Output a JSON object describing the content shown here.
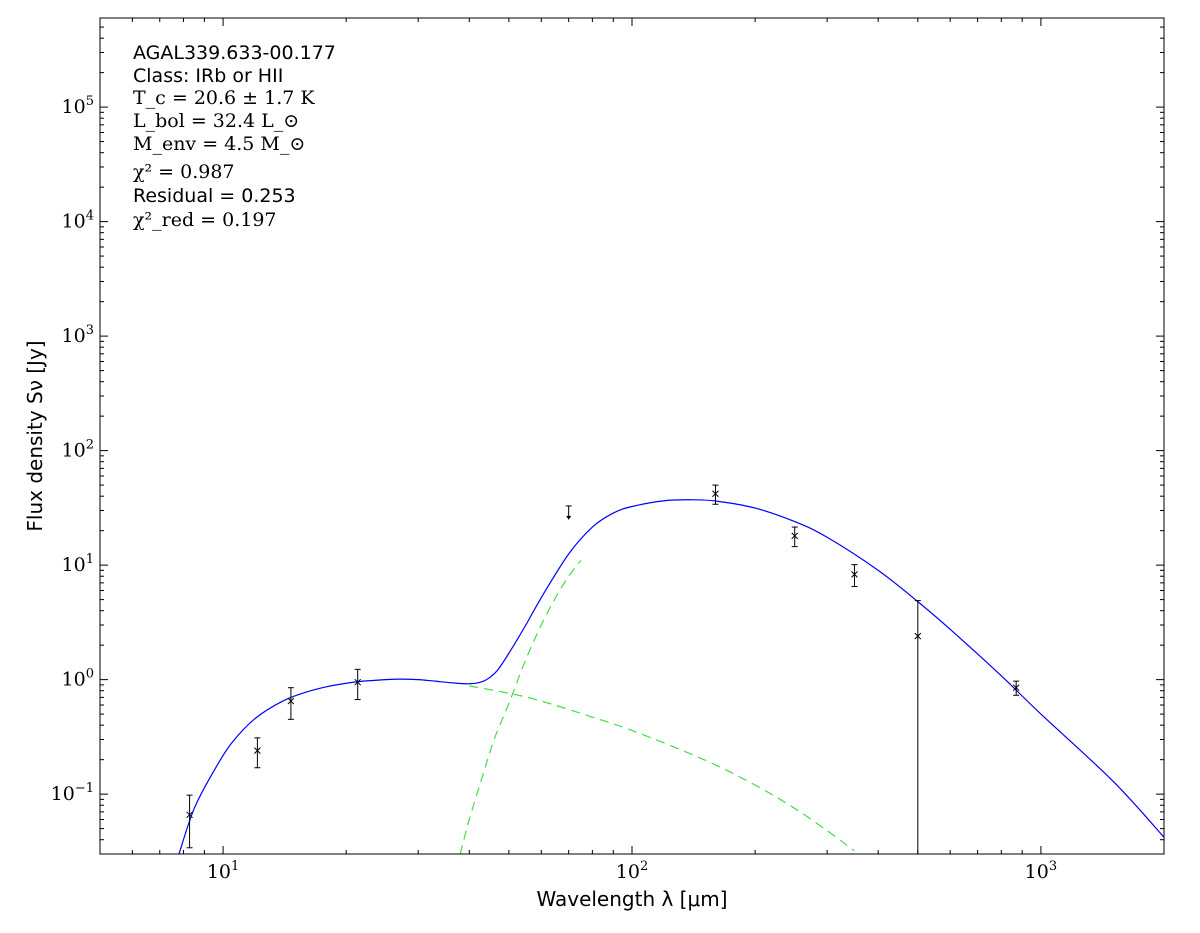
{
  "chart_data": {
    "type": "scatter",
    "title": "",
    "xlabel": "Wavelength λ [μm]",
    "ylabel": "Flux density Sν [Jy]",
    "xscale": "log",
    "yscale": "log",
    "xlim": [
      5,
      2000
    ],
    "ylim": [
      0.03,
      600000
    ],
    "grid": false,
    "legend": "none",
    "x_tick_labels": [
      {
        "value": 10,
        "base": "10",
        "exp": "1"
      },
      {
        "value": 100,
        "base": "10",
        "exp": "2"
      },
      {
        "value": 1000,
        "base": "10",
        "exp": "3"
      }
    ],
    "y_tick_labels": [
      {
        "value": 0.1,
        "base": "10",
        "exp": "−1"
      },
      {
        "value": 1,
        "base": "10",
        "exp": "0"
      },
      {
        "value": 10,
        "base": "10",
        "exp": "1"
      },
      {
        "value": 100,
        "base": "10",
        "exp": "2"
      },
      {
        "value": 1000,
        "base": "10",
        "exp": "3"
      },
      {
        "value": 10000,
        "base": "10",
        "exp": "4"
      },
      {
        "value": 100000,
        "base": "10",
        "exp": "5"
      }
    ],
    "annotations": {
      "source": "AGAL339.633-00.177",
      "class": "Class: IRb or HII",
      "tc": "T_c = 20.6 ± 1.7 K",
      "lbol": "L_bol = 32.4 L_⊙",
      "menv": "M_env = 4.5 M_⊙",
      "chi2": "χ² = 0.987",
      "residual": "Residual = 0.253",
      "chi2red": "χ²_red = 0.197"
    },
    "series": [
      {
        "kind": "measurements",
        "color": "#000000",
        "points": [
          {
            "x": 8.28,
            "y": 0.066,
            "ylo": 0.034,
            "yhi": 0.098
          },
          {
            "x": 12.13,
            "y": 0.24,
            "ylo": 0.17,
            "yhi": 0.31
          },
          {
            "x": 14.65,
            "y": 0.65,
            "ylo": 0.45,
            "yhi": 0.85
          },
          {
            "x": 21.34,
            "y": 0.95,
            "ylo": 0.67,
            "yhi": 1.23
          },
          {
            "x": 160,
            "y": 42,
            "ylo": 34,
            "yhi": 50
          },
          {
            "x": 250,
            "y": 18,
            "ylo": 14.5,
            "yhi": 21.5
          },
          {
            "x": 350,
            "y": 8.3,
            "ylo": 6.5,
            "yhi": 10.1
          },
          {
            "x": 500,
            "y": 2.4,
            "ylo": 0.03,
            "yhi": 4.9
          },
          {
            "x": 870,
            "y": 0.85,
            "ylo": 0.73,
            "yhi": 0.97
          }
        ]
      },
      {
        "kind": "upper-limit",
        "color": "#000000",
        "points": [
          {
            "x": 70,
            "y": 28
          }
        ]
      },
      {
        "kind": "total-fit",
        "color": "#0000ff",
        "style": "solid",
        "x": [
          7.8,
          8.5,
          9.5,
          10.5,
          12,
          14,
          16,
          18,
          20,
          22,
          25,
          27,
          30,
          33,
          36,
          40,
          43,
          45,
          47,
          50,
          55,
          60,
          70,
          80,
          90,
          100,
          120,
          140,
          160,
          200,
          250,
          300,
          400,
          500,
          600,
          800,
          1000,
          1500,
          2000
        ],
        "y": [
          0.03,
          0.075,
          0.16,
          0.28,
          0.46,
          0.65,
          0.78,
          0.87,
          0.93,
          0.97,
          1.0,
          1.01,
          1.0,
          0.97,
          0.94,
          0.92,
          0.96,
          1.05,
          1.22,
          1.7,
          3.0,
          5.2,
          12.5,
          21.5,
          28.5,
          32.5,
          36.5,
          37.2,
          36.3,
          31.5,
          24.0,
          17.5,
          9.0,
          4.8,
          2.75,
          1.08,
          0.5,
          0.13,
          0.042
        ]
      },
      {
        "kind": "warm-component",
        "color": "#44dd44",
        "style": "dashed",
        "x": [
          40,
          50,
          60,
          80,
          100,
          150,
          200,
          250,
          300,
          350
        ],
        "y": [
          0.88,
          0.76,
          0.65,
          0.47,
          0.36,
          0.2,
          0.12,
          0.075,
          0.048,
          0.032
        ]
      },
      {
        "kind": "cold-component",
        "color": "#44dd44",
        "style": "dashed",
        "x": [
          38,
          40,
          43,
          46,
          50,
          55,
          60,
          65,
          70,
          75
        ],
        "y": [
          0.03,
          0.06,
          0.14,
          0.3,
          0.62,
          1.5,
          3.0,
          5.2,
          8.0,
          11.0
        ]
      }
    ]
  }
}
